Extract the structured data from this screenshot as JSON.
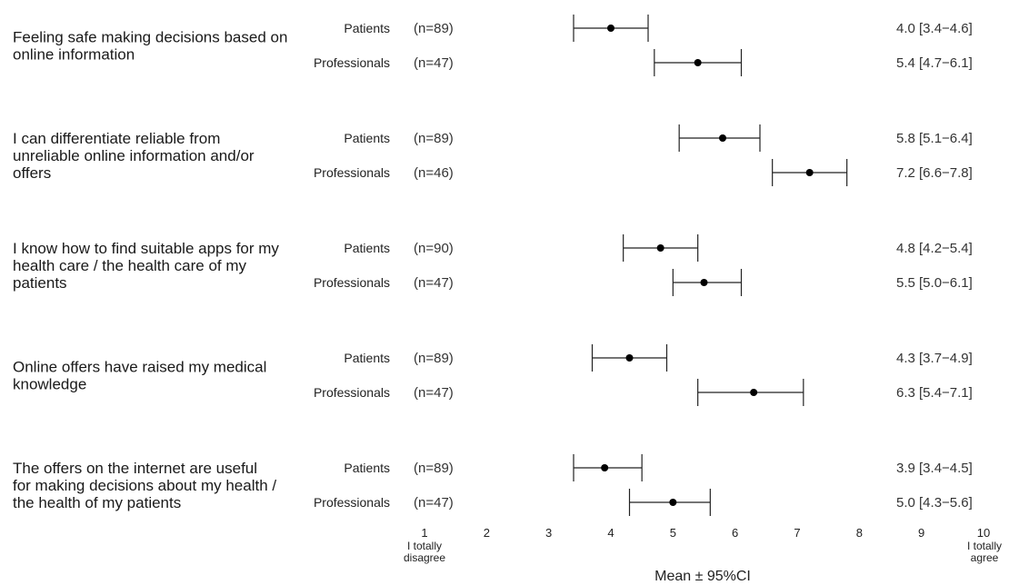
{
  "chart_data": {
    "type": "forest",
    "xlabel": "Mean ± 95%CI",
    "xlim": [
      1,
      10
    ],
    "ticks": [
      "1",
      "2",
      "3",
      "4",
      "5",
      "6",
      "7",
      "8",
      "9",
      "10"
    ],
    "anchor_left": [
      "I totally",
      "disagree"
    ],
    "anchor_right": [
      "I totally",
      "agree"
    ],
    "items": [
      {
        "question": [
          "Feeling safe making decisions based on",
          "online information"
        ],
        "groups": [
          {
            "group": "Patients",
            "n": "(n=89)",
            "mean": 4.0,
            "lo": 3.4,
            "hi": 4.6,
            "label": "4.0 [3.4−4.6]"
          },
          {
            "group": "Professionals",
            "n": "(n=47)",
            "mean": 5.4,
            "lo": 4.7,
            "hi": 6.1,
            "label": "5.4 [4.7−6.1]"
          }
        ]
      },
      {
        "question": [
          "I can differentiate reliable from",
          "unreliable online information and/or",
          "offers"
        ],
        "groups": [
          {
            "group": "Patients",
            "n": "(n=89)",
            "mean": 5.8,
            "lo": 5.1,
            "hi": 6.4,
            "label": "5.8 [5.1−6.4]"
          },
          {
            "group": "Professionals",
            "n": "(n=46)",
            "mean": 7.2,
            "lo": 6.6,
            "hi": 7.8,
            "label": "7.2 [6.6−7.8]"
          }
        ]
      },
      {
        "question": [
          "I know how to find suitable apps for my",
          "health care / the health care of my",
          "patients"
        ],
        "groups": [
          {
            "group": "Patients",
            "n": "(n=90)",
            "mean": 4.8,
            "lo": 4.2,
            "hi": 5.4,
            "label": "4.8 [4.2−5.4]"
          },
          {
            "group": "Professionals",
            "n": "(n=47)",
            "mean": 5.5,
            "lo": 5.0,
            "hi": 6.1,
            "label": "5.5 [5.0−6.1]"
          }
        ]
      },
      {
        "question": [
          "Online offers have raised my medical",
          "knowledge"
        ],
        "groups": [
          {
            "group": "Patients",
            "n": "(n=89)",
            "mean": 4.3,
            "lo": 3.7,
            "hi": 4.9,
            "label": "4.3 [3.7−4.9]"
          },
          {
            "group": "Professionals",
            "n": "(n=47)",
            "mean": 6.3,
            "lo": 5.4,
            "hi": 7.1,
            "label": "6.3 [5.4−7.1]"
          }
        ]
      },
      {
        "question": [
          "The offers on the internet are useful",
          "for making decisions about my health /",
          "the health of my patients"
        ],
        "groups": [
          {
            "group": "Patients",
            "n": "(n=89)",
            "mean": 3.9,
            "lo": 3.4,
            "hi": 4.5,
            "label": "3.9 [3.4−4.5]"
          },
          {
            "group": "Professionals",
            "n": "(n=47)",
            "mean": 5.0,
            "lo": 4.3,
            "hi": 5.6,
            "label": "5.0 [4.3−5.6]"
          }
        ]
      }
    ]
  }
}
